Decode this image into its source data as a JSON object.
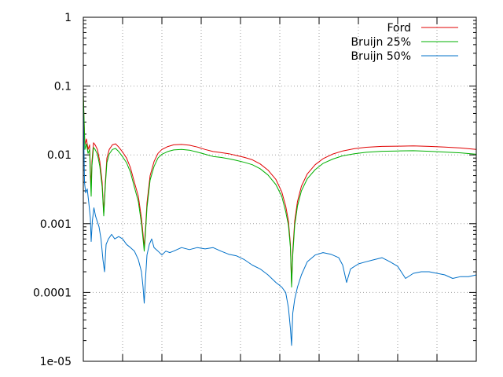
{
  "chart_data": {
    "type": "line",
    "title": "",
    "xlabel": "",
    "ylabel": "",
    "y_scale": "log",
    "ylim": [
      1e-05,
      1
    ],
    "xlim": [
      0,
      1
    ],
    "x_ticks": [
      0,
      0.1,
      0.2,
      0.3,
      0.4,
      0.5,
      0.6,
      0.7,
      0.8,
      0.9,
      1
    ],
    "y_ticks": [
      {
        "value": 1,
        "label": "1"
      },
      {
        "value": 0.1,
        "label": "0.1"
      },
      {
        "value": 0.01,
        "label": "0.01"
      },
      {
        "value": 0.001,
        "label": "0.001"
      },
      {
        "value": 0.0001,
        "label": "0.0001"
      },
      {
        "value": 1e-05,
        "label": "1e-05"
      }
    ],
    "grid": true,
    "legend_position": "top-right",
    "series": [
      {
        "name": "Ford",
        "color": "#e00000",
        "points": [
          [
            0.0,
            0.07
          ],
          [
            0.004,
            0.014
          ],
          [
            0.008,
            0.017
          ],
          [
            0.012,
            0.012
          ],
          [
            0.016,
            0.014
          ],
          [
            0.018,
            0.006
          ],
          [
            0.02,
            0.0035
          ],
          [
            0.022,
            0.008
          ],
          [
            0.026,
            0.015
          ],
          [
            0.03,
            0.014
          ],
          [
            0.036,
            0.012
          ],
          [
            0.042,
            0.008
          ],
          [
            0.048,
            0.004
          ],
          [
            0.052,
            0.0014
          ],
          [
            0.056,
            0.004
          ],
          [
            0.06,
            0.009
          ],
          [
            0.066,
            0.012
          ],
          [
            0.074,
            0.014
          ],
          [
            0.082,
            0.0145
          ],
          [
            0.09,
            0.013
          ],
          [
            0.1,
            0.011
          ],
          [
            0.11,
            0.009
          ],
          [
            0.12,
            0.0065
          ],
          [
            0.13,
            0.004
          ],
          [
            0.14,
            0.0025
          ],
          [
            0.148,
            0.0012
          ],
          [
            0.152,
            0.0007
          ],
          [
            0.155,
            0.00045
          ],
          [
            0.158,
            0.0008
          ],
          [
            0.162,
            0.002
          ],
          [
            0.17,
            0.005
          ],
          [
            0.18,
            0.008
          ],
          [
            0.19,
            0.0105
          ],
          [
            0.2,
            0.012
          ],
          [
            0.215,
            0.0132
          ],
          [
            0.23,
            0.014
          ],
          [
            0.25,
            0.0142
          ],
          [
            0.27,
            0.0138
          ],
          [
            0.29,
            0.013
          ],
          [
            0.31,
            0.012
          ],
          [
            0.33,
            0.0112
          ],
          [
            0.35,
            0.0108
          ],
          [
            0.37,
            0.0104
          ],
          [
            0.39,
            0.0098
          ],
          [
            0.41,
            0.0092
          ],
          [
            0.43,
            0.0085
          ],
          [
            0.45,
            0.0074
          ],
          [
            0.47,
            0.006
          ],
          [
            0.49,
            0.0044
          ],
          [
            0.505,
            0.0029
          ],
          [
            0.515,
            0.0018
          ],
          [
            0.522,
            0.0011
          ],
          [
            0.527,
            0.0005
          ],
          [
            0.53,
            0.00013
          ],
          [
            0.533,
            0.0004
          ],
          [
            0.538,
            0.0011
          ],
          [
            0.545,
            0.0021
          ],
          [
            0.555,
            0.0035
          ],
          [
            0.57,
            0.0053
          ],
          [
            0.59,
            0.0072
          ],
          [
            0.61,
            0.0088
          ],
          [
            0.635,
            0.0103
          ],
          [
            0.66,
            0.0114
          ],
          [
            0.69,
            0.0123
          ],
          [
            0.72,
            0.0129
          ],
          [
            0.76,
            0.0133
          ],
          [
            0.8,
            0.0134
          ],
          [
            0.84,
            0.0135
          ],
          [
            0.88,
            0.0133
          ],
          [
            0.92,
            0.013
          ],
          [
            0.96,
            0.0126
          ],
          [
            1.0,
            0.012
          ]
        ]
      },
      {
        "name": "Bruijn 25%",
        "color": "#00b000",
        "points": [
          [
            0.0,
            0.08
          ],
          [
            0.004,
            0.012
          ],
          [
            0.008,
            0.0145
          ],
          [
            0.012,
            0.0105
          ],
          [
            0.016,
            0.012
          ],
          [
            0.018,
            0.005
          ],
          [
            0.02,
            0.0025
          ],
          [
            0.022,
            0.007
          ],
          [
            0.026,
            0.0128
          ],
          [
            0.03,
            0.012
          ],
          [
            0.036,
            0.0102
          ],
          [
            0.042,
            0.0068
          ],
          [
            0.048,
            0.0034
          ],
          [
            0.052,
            0.0013
          ],
          [
            0.056,
            0.0035
          ],
          [
            0.06,
            0.0077
          ],
          [
            0.066,
            0.0103
          ],
          [
            0.074,
            0.012
          ],
          [
            0.082,
            0.0124
          ],
          [
            0.09,
            0.0112
          ],
          [
            0.1,
            0.0094
          ],
          [
            0.11,
            0.0077
          ],
          [
            0.12,
            0.0056
          ],
          [
            0.13,
            0.0034
          ],
          [
            0.14,
            0.0021
          ],
          [
            0.148,
            0.001
          ],
          [
            0.152,
            0.0006
          ],
          [
            0.155,
            0.0004
          ],
          [
            0.158,
            0.0007
          ],
          [
            0.162,
            0.0017
          ],
          [
            0.17,
            0.0043
          ],
          [
            0.18,
            0.0068
          ],
          [
            0.19,
            0.009
          ],
          [
            0.2,
            0.0102
          ],
          [
            0.215,
            0.0112
          ],
          [
            0.23,
            0.0118
          ],
          [
            0.25,
            0.012
          ],
          [
            0.27,
            0.0117
          ],
          [
            0.29,
            0.011
          ],
          [
            0.31,
            0.0102
          ],
          [
            0.33,
            0.0095
          ],
          [
            0.35,
            0.0092
          ],
          [
            0.37,
            0.0088
          ],
          [
            0.39,
            0.0083
          ],
          [
            0.41,
            0.0078
          ],
          [
            0.43,
            0.0072
          ],
          [
            0.45,
            0.0063
          ],
          [
            0.47,
            0.0051
          ],
          [
            0.49,
            0.0037
          ],
          [
            0.505,
            0.0025
          ],
          [
            0.515,
            0.0015
          ],
          [
            0.522,
            0.00095
          ],
          [
            0.527,
            0.00045
          ],
          [
            0.53,
            0.00012
          ],
          [
            0.533,
            0.00035
          ],
          [
            0.538,
            0.00095
          ],
          [
            0.545,
            0.0018
          ],
          [
            0.555,
            0.003
          ],
          [
            0.57,
            0.0045
          ],
          [
            0.59,
            0.0061
          ],
          [
            0.61,
            0.0075
          ],
          [
            0.635,
            0.0087
          ],
          [
            0.66,
            0.0097
          ],
          [
            0.69,
            0.0104
          ],
          [
            0.72,
            0.0109
          ],
          [
            0.76,
            0.0113
          ],
          [
            0.8,
            0.0114
          ],
          [
            0.84,
            0.0115
          ],
          [
            0.88,
            0.0113
          ],
          [
            0.92,
            0.011
          ],
          [
            0.96,
            0.0107
          ],
          [
            1.0,
            0.0102
          ]
        ]
      },
      {
        "name": "Bruijn 50%",
        "color": "#0070c8",
        "points": [
          [
            0.0,
            0.05
          ],
          [
            0.003,
            0.004
          ],
          [
            0.006,
            0.0028
          ],
          [
            0.01,
            0.0032
          ],
          [
            0.014,
            0.002
          ],
          [
            0.018,
            0.0012
          ],
          [
            0.02,
            0.00055
          ],
          [
            0.023,
            0.0011
          ],
          [
            0.027,
            0.0017
          ],
          [
            0.031,
            0.0013
          ],
          [
            0.035,
            0.0011
          ],
          [
            0.04,
            0.0009
          ],
          [
            0.045,
            0.0006
          ],
          [
            0.05,
            0.0003
          ],
          [
            0.054,
            0.0002
          ],
          [
            0.058,
            0.0005
          ],
          [
            0.064,
            0.0006
          ],
          [
            0.072,
            0.0007
          ],
          [
            0.08,
            0.0006
          ],
          [
            0.09,
            0.00065
          ],
          [
            0.1,
            0.0006
          ],
          [
            0.11,
            0.0005
          ],
          [
            0.12,
            0.00045
          ],
          [
            0.13,
            0.0004
          ],
          [
            0.14,
            0.0003
          ],
          [
            0.148,
            0.0002
          ],
          [
            0.152,
            0.00012
          ],
          [
            0.155,
            7e-05
          ],
          [
            0.158,
            0.00015
          ],
          [
            0.162,
            0.00035
          ],
          [
            0.168,
            0.0005
          ],
          [
            0.174,
            0.0006
          ],
          [
            0.18,
            0.00045
          ],
          [
            0.19,
            0.0004
          ],
          [
            0.2,
            0.00035
          ],
          [
            0.21,
            0.0004
          ],
          [
            0.22,
            0.00038
          ],
          [
            0.23,
            0.0004
          ],
          [
            0.25,
            0.00045
          ],
          [
            0.27,
            0.00042
          ],
          [
            0.29,
            0.00045
          ],
          [
            0.31,
            0.00043
          ],
          [
            0.33,
            0.00045
          ],
          [
            0.35,
            0.0004
          ],
          [
            0.37,
            0.00036
          ],
          [
            0.39,
            0.00034
          ],
          [
            0.41,
            0.0003
          ],
          [
            0.43,
            0.00025
          ],
          [
            0.45,
            0.00022
          ],
          [
            0.47,
            0.00018
          ],
          [
            0.49,
            0.00014
          ],
          [
            0.505,
            0.00012
          ],
          [
            0.515,
            0.0001
          ],
          [
            0.522,
            6e-05
          ],
          [
            0.527,
            3e-05
          ],
          [
            0.53,
            1.7e-05
          ],
          [
            0.533,
            5e-05
          ],
          [
            0.538,
            8e-05
          ],
          [
            0.545,
            0.00012
          ],
          [
            0.555,
            0.00018
          ],
          [
            0.57,
            0.00028
          ],
          [
            0.59,
            0.00035
          ],
          [
            0.61,
            0.00038
          ],
          [
            0.63,
            0.00036
          ],
          [
            0.65,
            0.00032
          ],
          [
            0.66,
            0.00025
          ],
          [
            0.67,
            0.00014
          ],
          [
            0.68,
            0.00022
          ],
          [
            0.7,
            0.00026
          ],
          [
            0.72,
            0.00028
          ],
          [
            0.74,
            0.0003
          ],
          [
            0.76,
            0.00032
          ],
          [
            0.78,
            0.00028
          ],
          [
            0.8,
            0.00024
          ],
          [
            0.82,
            0.00016
          ],
          [
            0.84,
            0.00019
          ],
          [
            0.86,
            0.0002
          ],
          [
            0.88,
            0.0002
          ],
          [
            0.9,
            0.00019
          ],
          [
            0.92,
            0.00018
          ],
          [
            0.94,
            0.00016
          ],
          [
            0.96,
            0.00017
          ],
          [
            0.98,
            0.00017
          ],
          [
            1.0,
            0.00018
          ]
        ]
      }
    ]
  }
}
